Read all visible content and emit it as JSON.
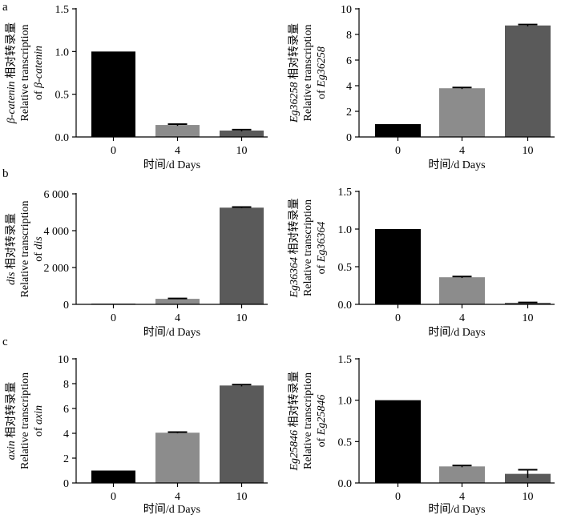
{
  "colors": {
    "bar0": "#000000",
    "bar1": "#8c8c8c",
    "bar2": "#5a5a5a",
    "axis": "#000000"
  },
  "panel_labels": [
    "a",
    "b",
    "c"
  ],
  "chart_data": [
    {
      "type": "bar",
      "categories": [
        "0",
        "4",
        "10"
      ],
      "values": [
        1.0,
        0.14,
        0.075
      ],
      "errors": [
        0.0,
        0.01,
        0.01
      ],
      "ylim": [
        0,
        1.5
      ],
      "yticks": [
        0,
        0.5,
        1.0,
        1.5
      ],
      "ytick_labels": [
        "0.0",
        "0.5",
        "1.0",
        "1.5"
      ],
      "xlabel": "时间/d Days",
      "ylabel": [
        "β-catenin 相对转录量",
        "Relative transcription",
        "of β-catenin"
      ]
    },
    {
      "type": "bar",
      "categories": [
        "0",
        "4",
        "10"
      ],
      "values": [
        1.0,
        3.8,
        8.7
      ],
      "errors": [
        0.0,
        0.06,
        0.07
      ],
      "ylim": [
        0,
        10
      ],
      "yticks": [
        0,
        2,
        4,
        6,
        8,
        10
      ],
      "ytick_labels": [
        "0",
        "2",
        "4",
        "6",
        "8",
        "10"
      ],
      "xlabel": "时间/d Days",
      "ylabel": [
        "Eg36258 相对转录量",
        "Relative transcription",
        "of Eg36258"
      ]
    },
    {
      "type": "bar",
      "categories": [
        "0",
        "4",
        "10"
      ],
      "values": [
        1,
        300,
        5250
      ],
      "errors": [
        0,
        20,
        30
      ],
      "ylim": [
        0,
        6000
      ],
      "yticks": [
        0,
        2000,
        4000,
        6000
      ],
      "ytick_labels": [
        "0",
        "2 000",
        "4 000",
        "6 000"
      ],
      "xlabel": "时间/d Days",
      "ylabel": [
        "dis 相对转录量",
        "Relative transcription",
        "of dis"
      ]
    },
    {
      "type": "bar",
      "categories": [
        "0",
        "4",
        "10"
      ],
      "values": [
        1.0,
        0.36,
        0.02
      ],
      "errors": [
        0.0,
        0.01,
        0.005
      ],
      "ylim": [
        0,
        1.5
      ],
      "yticks": [
        0,
        0.5,
        1.0,
        1.5
      ],
      "ytick_labels": [
        "0.0",
        "0.5",
        "1.0",
        "1.5"
      ],
      "xlabel": "时间/d Days",
      "ylabel": [
        "Eg36364 相对转录量",
        "Relative transcription",
        "of Eg36364"
      ]
    },
    {
      "type": "bar",
      "categories": [
        "0",
        "4",
        "10"
      ],
      "values": [
        1.0,
        4.05,
        7.85
      ],
      "errors": [
        0.0,
        0.05,
        0.07
      ],
      "ylim": [
        0,
        10
      ],
      "yticks": [
        0,
        2,
        4,
        6,
        8,
        10
      ],
      "ytick_labels": [
        "0",
        "2",
        "4",
        "6",
        "8",
        "10"
      ],
      "xlabel": "时间/d Days",
      "ylabel": [
        "axin 相对转录量",
        "Relative transcription",
        "of axin"
      ]
    },
    {
      "type": "bar",
      "categories": [
        "0",
        "4",
        "10"
      ],
      "values": [
        1.0,
        0.2,
        0.11
      ],
      "errors": [
        0.0,
        0.01,
        0.05
      ],
      "ylim": [
        0,
        1.5
      ],
      "yticks": [
        0,
        0.5,
        1.0,
        1.5
      ],
      "ytick_labels": [
        "0.0",
        "0.5",
        "1.0",
        "1.5"
      ],
      "xlabel": "时间/d Days",
      "ylabel": [
        "Eg25846 相对转录量",
        "Relative transcription",
        "of Eg25846"
      ]
    }
  ]
}
